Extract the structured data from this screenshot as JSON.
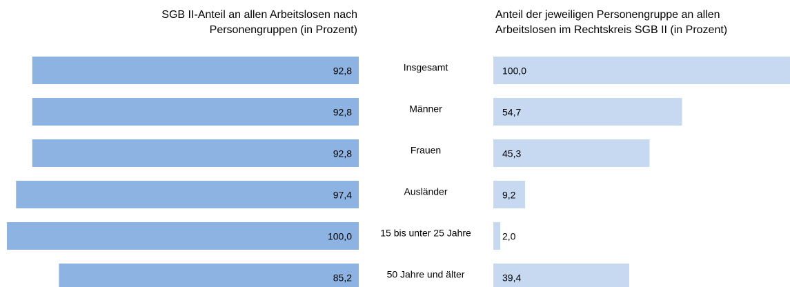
{
  "chart_data": [
    {
      "type": "barh-left",
      "title": [
        "SGB II-Anteil an allen Arbeitslosen nach",
        "Personengruppen (in Prozent)"
      ],
      "categories": [
        "Insgesamt",
        "Männer",
        "Frauen",
        "Ausländer",
        "15 bis unter 25 Jahre",
        "50 Jahre und älter"
      ],
      "values": [
        92.8,
        92.8,
        92.8,
        97.4,
        100.0,
        85.2
      ],
      "value_labels": [
        "92,8",
        "92,8",
        "92,8",
        "97,4",
        "100,0",
        "85,2"
      ],
      "color": "#8db3e2",
      "xlim": [
        0,
        100
      ]
    },
    {
      "type": "barh-right",
      "title": [
        "Anteil der jeweiligen Personengruppe an allen",
        "Arbeitslosen im Rechtskreis SGB II (in Prozent)"
      ],
      "values": [
        100.0,
        54.7,
        45.3,
        9.2,
        2.0,
        39.4
      ],
      "value_labels": [
        "100,0",
        "54,7",
        "45,3",
        "9,2",
        "2,0",
        "39,4"
      ],
      "color": "#c6d9f1",
      "xlim": [
        0,
        86
      ]
    }
  ]
}
